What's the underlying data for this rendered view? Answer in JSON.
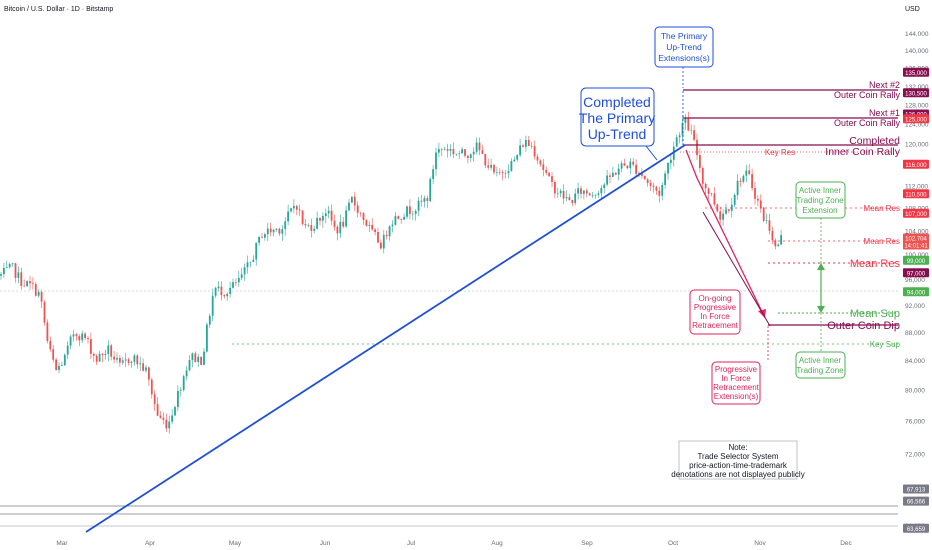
{
  "header": {
    "title": "Bitcoin / U.S. Dollar · 1D · Bitstamp",
    "currency": "USD"
  },
  "colors": {
    "up": "#26a69a",
    "down": "#ef5350",
    "trend": "#1f4fd8",
    "maroon": "#880e4f",
    "res": "#f23645",
    "sup": "#4caf50",
    "grey": "#787b86",
    "red_arrow": "#e0245e"
  },
  "chart_data": {
    "type": "candlestick",
    "y_scale": "log",
    "ylim": [
      63000,
      150000
    ],
    "y_ticks": [
      "144,000",
      "140,000",
      "136,000",
      "132,000",
      "128,000",
      "124,000",
      "120,000",
      "116,000",
      "112,000",
      "108,000",
      "104,000",
      "100,000",
      "96,000",
      "92,000",
      "88,000",
      "84,000",
      "80,000",
      "76,000",
      "72,000",
      "68,000",
      "64,000"
    ],
    "x_labels": [
      "Mar",
      "Apr",
      "May",
      "Jun",
      "Jul",
      "Aug",
      "Sep",
      "Oct",
      "Nov",
      "Dec"
    ],
    "series_summary": [
      {
        "date": "Feb",
        "close": 96500
      },
      {
        "date": "early Mar",
        "close": 86000
      },
      {
        "date": "mid Mar",
        "close": 82500
      },
      {
        "date": "early Apr",
        "close": 76000
      },
      {
        "date": "Apr 7",
        "low": 74500
      },
      {
        "date": "late Apr",
        "close": 94000
      },
      {
        "date": "mid May",
        "close": 104000
      },
      {
        "date": "late May",
        "high": 111900
      },
      {
        "date": "Jun",
        "close": 105000
      },
      {
        "date": "mid Jul",
        "high": 123000
      },
      {
        "date": "early Aug",
        "close": 113000
      },
      {
        "date": "mid Aug",
        "high": 124500
      },
      {
        "date": "early Sep",
        "close": 108500
      },
      {
        "date": "Oct 6",
        "high": 126000
      },
      {
        "date": "Oct 10",
        "close": 112000
      },
      {
        "date": "late Oct",
        "close": 114000
      },
      {
        "date": "Nov",
        "close": 102700
      }
    ],
    "price_badges": [
      {
        "label": "135,000",
        "kind": "maroon"
      },
      {
        "label": "130,500",
        "kind": "maroon"
      },
      {
        "label": "126,000",
        "kind": "maroon"
      },
      {
        "label": "125,000",
        "kind": "red"
      },
      {
        "label": "116,000",
        "kind": "red"
      },
      {
        "label": "110,500",
        "kind": "red"
      },
      {
        "label": "107,000",
        "kind": "red"
      },
      {
        "label": "102,704",
        "kind": "current"
      },
      {
        "label": "14:01:41",
        "kind": "current"
      },
      {
        "label": "99,000",
        "kind": "green"
      },
      {
        "label": "97,000",
        "kind": "maroon"
      },
      {
        "label": "94,000",
        "kind": "green"
      },
      {
        "label": "67,913",
        "kind": "grey"
      },
      {
        "label": "66,566",
        "kind": "grey"
      },
      {
        "label": "63,659",
        "kind": "grey"
      }
    ],
    "levels": {
      "next2": {
        "value": 135000,
        "label1": "Next #2",
        "label2": "Outer Coin Rally"
      },
      "next1": {
        "value": 130500,
        "label1": "Next #1",
        "label2": "Outer Coin Rally"
      },
      "completed": {
        "value": 126000,
        "label1": "Completed",
        "label2": "Inner Coin Rally"
      },
      "key_res": {
        "value": 125000,
        "label": "Key Res"
      },
      "mean_res_outer": {
        "value": 116000,
        "label": "Mean Res"
      },
      "mean_res_mid": {
        "value": 110500,
        "label": "Mean Res"
      },
      "mean_res": {
        "value": 107000,
        "label": "Mean Res"
      },
      "mean_sup": {
        "value": 99000,
        "label": "Mean Sup"
      },
      "outer_dip": {
        "value": 97000,
        "label": "Outer Coin Dip"
      },
      "key_sup": {
        "value": 94000,
        "label": "Key Sup"
      }
    },
    "annotations": {
      "completed_uptrend": [
        "Completed",
        "The Primary",
        "Up-Trend"
      ],
      "uptrend_ext": [
        "The Primary",
        "Up-Trend",
        "Extensions(s)"
      ],
      "active_zone_ext": [
        "Active Inner",
        "Trading Zone",
        "Extension"
      ],
      "active_zone": [
        "Active Inner",
        "Trading Zone"
      ],
      "ongoing": [
        "On-going",
        "Progressive",
        "In Force",
        "Retracement"
      ],
      "progressive_ext": [
        "Progressive",
        "In Force",
        "Retracement",
        "Extension(s)"
      ],
      "note": [
        "Note:",
        "Trade Selector System",
        "price-action-time-trademark",
        "denotations are not displayed publicly"
      ]
    }
  }
}
